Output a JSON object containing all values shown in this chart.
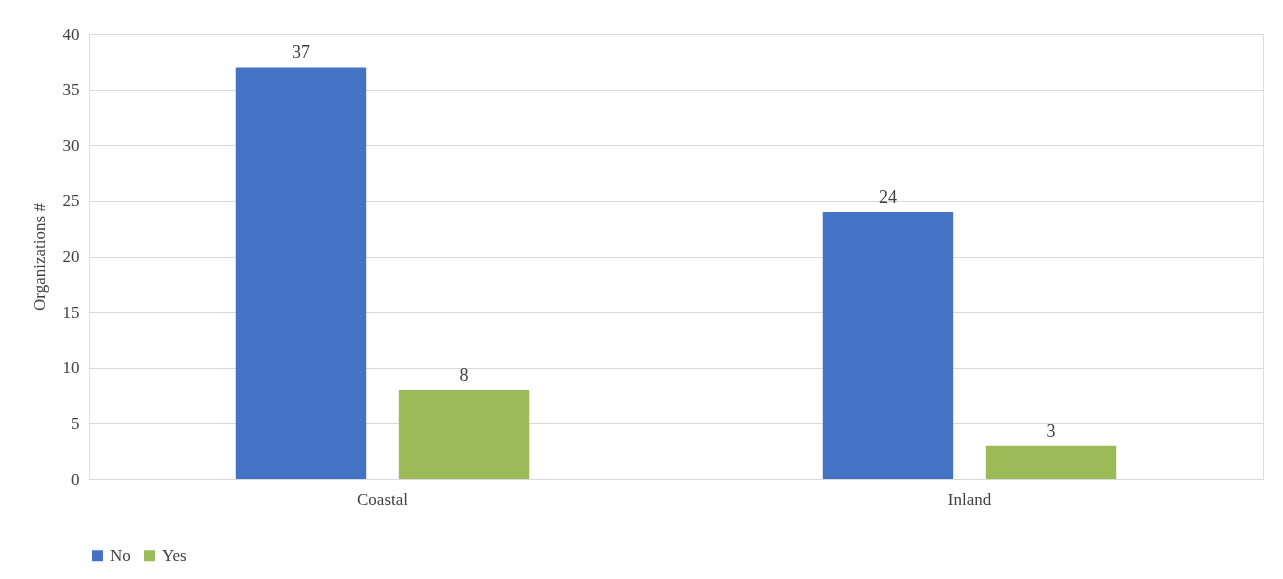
{
  "chart_data": {
    "type": "bar",
    "ylabel": "Organizations #",
    "categories": [
      "Coastal",
      "Inland"
    ],
    "series": [
      {
        "name": "No",
        "color": "#4472c4",
        "values": [
          37,
          24
        ]
      },
      {
        "name": "Yes",
        "color": "#9bbb59",
        "values": [
          8,
          3
        ]
      }
    ],
    "ylim": [
      0,
      40
    ],
    "yticks": [
      0,
      5,
      10,
      15,
      20,
      25,
      30,
      35,
      40
    ],
    "grid": "y",
    "data_labels": true,
    "legend": "bottom"
  }
}
